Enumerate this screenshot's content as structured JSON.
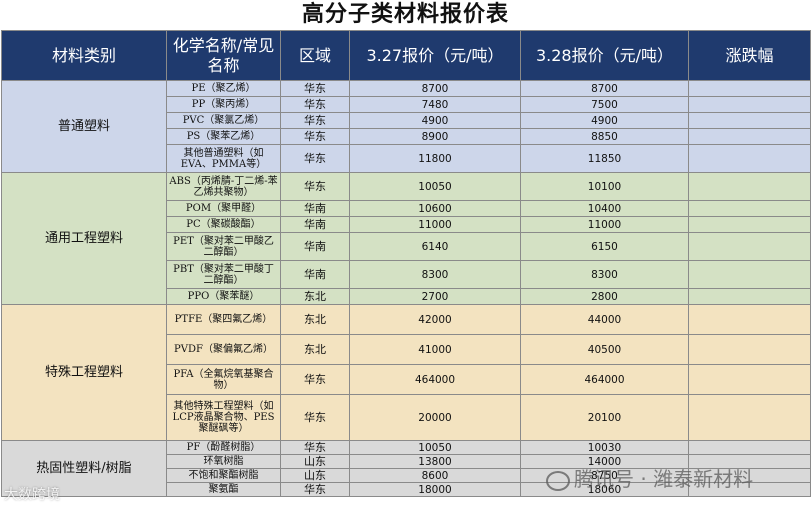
{
  "title": "高分子类材料报价表",
  "headers": {
    "category": "材料类别",
    "name": "化学名称/常见名称",
    "region": "区域",
    "price_a": "3.27报价（元/吨）",
    "price_b": "3.28报价（元/吨）",
    "change": "涨跌幅"
  },
  "groups": [
    {
      "category": "普通塑料",
      "rows": [
        {
          "name": "PE（聚乙烯）",
          "region": "华东",
          "a": "8700",
          "b": "8700",
          "change": ""
        },
        {
          "name": "PP（聚丙烯）",
          "region": "华东",
          "a": "7480",
          "b": "7500",
          "change": ""
        },
        {
          "name": "PVC（聚氯乙烯）",
          "region": "华东",
          "a": "4900",
          "b": "4900",
          "change": ""
        },
        {
          "name": "PS（聚苯乙烯）",
          "region": "华东",
          "a": "8900",
          "b": "8850",
          "change": ""
        },
        {
          "name": "其他普通塑料（如EVA、PMMA等）",
          "region": "华东",
          "a": "11800",
          "b": "11850",
          "change": ""
        }
      ]
    },
    {
      "category": "通用工程塑料",
      "rows": [
        {
          "name": "ABS（丙烯腈-丁二烯-苯乙烯共聚物）",
          "region": "华东",
          "a": "10050",
          "b": "10100",
          "change": ""
        },
        {
          "name": "POM（聚甲醛）",
          "region": "华南",
          "a": "10600",
          "b": "10400",
          "change": ""
        },
        {
          "name": "PC（聚碳酸酯）",
          "region": "华南",
          "a": "11000",
          "b": "11000",
          "change": ""
        },
        {
          "name": "PET（聚对苯二甲酸乙二醇酯）",
          "region": "华南",
          "a": "6140",
          "b": "6150",
          "change": ""
        },
        {
          "name": "PBT（聚对苯二甲酸丁二醇酯）",
          "region": "华南",
          "a": "8300",
          "b": "8300",
          "change": ""
        },
        {
          "name": "PPO（聚苯醚）",
          "region": "东北",
          "a": "2700",
          "b": "2800",
          "change": ""
        }
      ]
    },
    {
      "category": "特殊工程塑料",
      "rows": [
        {
          "name": "PTFE（聚四氟乙烯）",
          "region": "东北",
          "a": "42000",
          "b": "44000",
          "change": ""
        },
        {
          "name": "PVDF（聚偏氟乙烯）",
          "region": "东北",
          "a": "41000",
          "b": "40500",
          "change": ""
        },
        {
          "name": "PFA（全氟烷氧基聚合物）",
          "region": "华东",
          "a": "464000",
          "b": "464000",
          "change": ""
        },
        {
          "name": "其他特殊工程塑料（如LCP液晶聚合物、PES聚醚砜等）",
          "region": "华东",
          "a": "20000",
          "b": "20100",
          "change": ""
        }
      ]
    },
    {
      "category": "热固性塑料/树脂",
      "rows": [
        {
          "name": "PF（酚醛树脂）",
          "region": "华东",
          "a": "10050",
          "b": "10030",
          "change": ""
        },
        {
          "name": "环氧树脂",
          "region": "山东",
          "a": "13800",
          "b": "14000",
          "change": ""
        },
        {
          "name": "不饱和聚酯树脂",
          "region": "山东",
          "a": "8600",
          "b": "8750",
          "change": ""
        },
        {
          "name": "聚氨酯",
          "region": "华东",
          "a": "18000",
          "b": "18060",
          "change": ""
        }
      ]
    }
  ],
  "watermark": "腾讯号 · 潍泰新材料",
  "logo": "大数跨境"
}
